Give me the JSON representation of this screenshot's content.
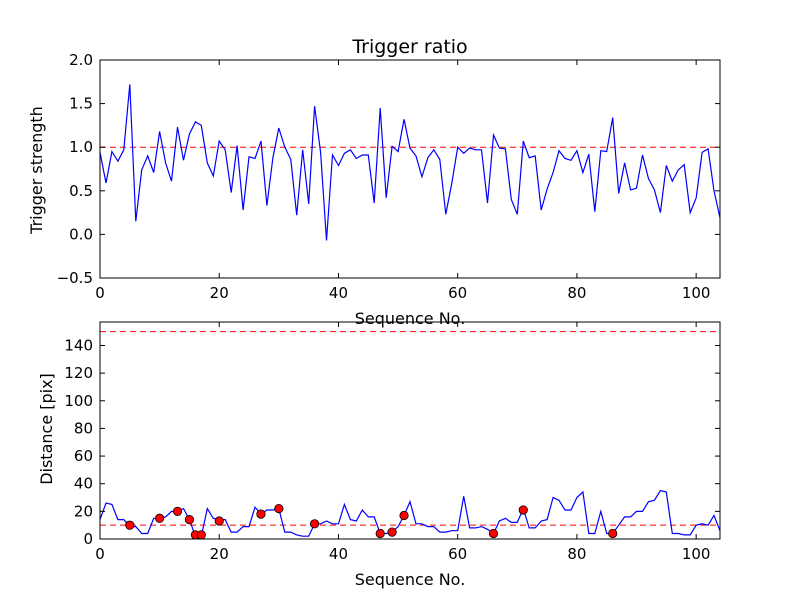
{
  "chart_data": [
    {
      "type": "line",
      "title": "Trigger ratio",
      "xlabel": "Sequence No.",
      "ylabel": "Trigger strength",
      "xlim": [
        0,
        104
      ],
      "ylim": [
        -0.5,
        2.0
      ],
      "xticks": [
        0,
        20,
        40,
        60,
        80,
        100
      ],
      "xtick_labels": [
        "0",
        "20",
        "40",
        "60",
        "80",
        "100"
      ],
      "yticks": [
        -0.5,
        0.0,
        0.5,
        1.0,
        1.5,
        2.0
      ],
      "ytick_labels": [
        "−0.5",
        "0.0",
        "0.5",
        "1.0",
        "1.5",
        "2.0"
      ],
      "grid": false,
      "reference_lines": [
        {
          "y": 1.0,
          "color": "#ff0000",
          "style": "dashed"
        }
      ],
      "series": [
        {
          "color": "#0000ff",
          "x": [
            0,
            1,
            2,
            3,
            4,
            5,
            6,
            7,
            8,
            9,
            10,
            11,
            12,
            13,
            14,
            15,
            16,
            17,
            18,
            19,
            20,
            21,
            22,
            23,
            24,
            25,
            26,
            27,
            28,
            29,
            30,
            31,
            32,
            33,
            34,
            35,
            36,
            37,
            38,
            39,
            40,
            41,
            42,
            43,
            44,
            45,
            46,
            47,
            48,
            49,
            50,
            51,
            52,
            53,
            54,
            55,
            56,
            57,
            58,
            59,
            60,
            61,
            62,
            63,
            64,
            65,
            66,
            67,
            68,
            69,
            70,
            71,
            72,
            73,
            74,
            75,
            76,
            77,
            78,
            79,
            80,
            81,
            82,
            83,
            84,
            85,
            86,
            87,
            88,
            89,
            90,
            91,
            92,
            93,
            94,
            95,
            96,
            97,
            98,
            99,
            100,
            101,
            102,
            103,
            104
          ],
          "y": [
            0.94,
            0.59,
            0.95,
            0.84,
            0.97,
            1.72,
            0.15,
            0.74,
            0.9,
            0.71,
            1.18,
            0.82,
            0.61,
            1.23,
            0.85,
            1.15,
            1.29,
            1.25,
            0.82,
            0.67,
            1.07,
            0.97,
            0.48,
            1.02,
            0.28,
            0.89,
            0.87,
            1.07,
            0.33,
            0.88,
            1.22,
            1.0,
            0.86,
            0.22,
            0.97,
            0.35,
            1.47,
            0.94,
            -0.07,
            0.91,
            0.79,
            0.93,
            0.97,
            0.87,
            0.91,
            0.91,
            0.36,
            1.45,
            0.42,
            1.01,
            0.95,
            1.32,
            0.99,
            0.9,
            0.66,
            0.88,
            0.97,
            0.86,
            0.23,
            0.58,
            1.0,
            0.93,
            0.99,
            0.97,
            0.97,
            0.36,
            1.14,
            0.99,
            0.98,
            0.4,
            0.23,
            1.07,
            0.88,
            0.9,
            0.28,
            0.52,
            0.71,
            0.96,
            0.87,
            0.85,
            0.96,
            0.71,
            0.92,
            0.26,
            0.96,
            0.95,
            1.34,
            0.47,
            0.82,
            0.51,
            0.53,
            0.91,
            0.64,
            0.51,
            0.25,
            0.79,
            0.61,
            0.74,
            0.8,
            0.25,
            0.42,
            0.94,
            0.98,
            0.5,
            0.19
          ]
        }
      ]
    },
    {
      "type": "line",
      "title": "",
      "xlabel": "Sequence No.",
      "ylabel": "Distance [pix]",
      "xlim": [
        0,
        104
      ],
      "ylim": [
        0,
        157
      ],
      "xticks": [
        0,
        20,
        40,
        60,
        80,
        100
      ],
      "xtick_labels": [
        "0",
        "20",
        "40",
        "60",
        "80",
        "100"
      ],
      "yticks": [
        0,
        20,
        40,
        60,
        80,
        100,
        120,
        140
      ],
      "ytick_labels": [
        "0",
        "20",
        "40",
        "60",
        "80",
        "100",
        "120",
        "140"
      ],
      "grid": false,
      "reference_lines": [
        {
          "y": 150,
          "color": "#ff0000",
          "style": "dashed"
        },
        {
          "y": 10,
          "color": "#ff0000",
          "style": "dashed"
        }
      ],
      "series": [
        {
          "color": "#0000ff",
          "x": [
            0,
            1,
            2,
            3,
            4,
            5,
            6,
            7,
            8,
            9,
            10,
            11,
            12,
            13,
            14,
            15,
            16,
            17,
            18,
            19,
            20,
            21,
            22,
            23,
            24,
            25,
            26,
            27,
            28,
            29,
            30,
            31,
            32,
            33,
            34,
            35,
            36,
            37,
            38,
            39,
            40,
            41,
            42,
            43,
            44,
            45,
            46,
            47,
            48,
            49,
            50,
            51,
            52,
            53,
            54,
            55,
            56,
            57,
            58,
            59,
            60,
            61,
            62,
            63,
            64,
            65,
            66,
            67,
            68,
            69,
            70,
            71,
            72,
            73,
            74,
            75,
            76,
            77,
            78,
            79,
            80,
            81,
            82,
            83,
            84,
            85,
            86,
            87,
            88,
            89,
            90,
            91,
            92,
            93,
            94,
            95,
            96,
            97,
            98,
            99,
            100,
            101,
            102,
            103,
            104
          ],
          "y": [
            14,
            26,
            25,
            14,
            14,
            9,
            9,
            4,
            4,
            15,
            15,
            16,
            20,
            20,
            22,
            14,
            2,
            2,
            22,
            15,
            14,
            14,
            5,
            5,
            9,
            9,
            23,
            18,
            21,
            21,
            22,
            5,
            5,
            3,
            2,
            2,
            11,
            11,
            13,
            11,
            11,
            25,
            14,
            13,
            21,
            16,
            16,
            4,
            4,
            5,
            9,
            17,
            27,
            11,
            11,
            9,
            9,
            5,
            5,
            6,
            6,
            31,
            8,
            8,
            9,
            7,
            4,
            13,
            15,
            12,
            12,
            22,
            8,
            8,
            13,
            14,
            30,
            28,
            21,
            21,
            30,
            34,
            4,
            4,
            20,
            4,
            4,
            10,
            16,
            16,
            20,
            20,
            27,
            28,
            35,
            34,
            4,
            4,
            3,
            3,
            10,
            11,
            10,
            17,
            6
          ]
        }
      ],
      "markers": {
        "color": "#ff0000",
        "x": [
          5,
          10,
          13,
          15,
          16,
          17,
          20,
          27,
          30,
          36,
          47,
          49,
          51,
          66,
          71,
          86
        ],
        "y": [
          10,
          15,
          20,
          14,
          3,
          3,
          13,
          18,
          22,
          11,
          4,
          5,
          17,
          4,
          21,
          4
        ]
      }
    }
  ]
}
